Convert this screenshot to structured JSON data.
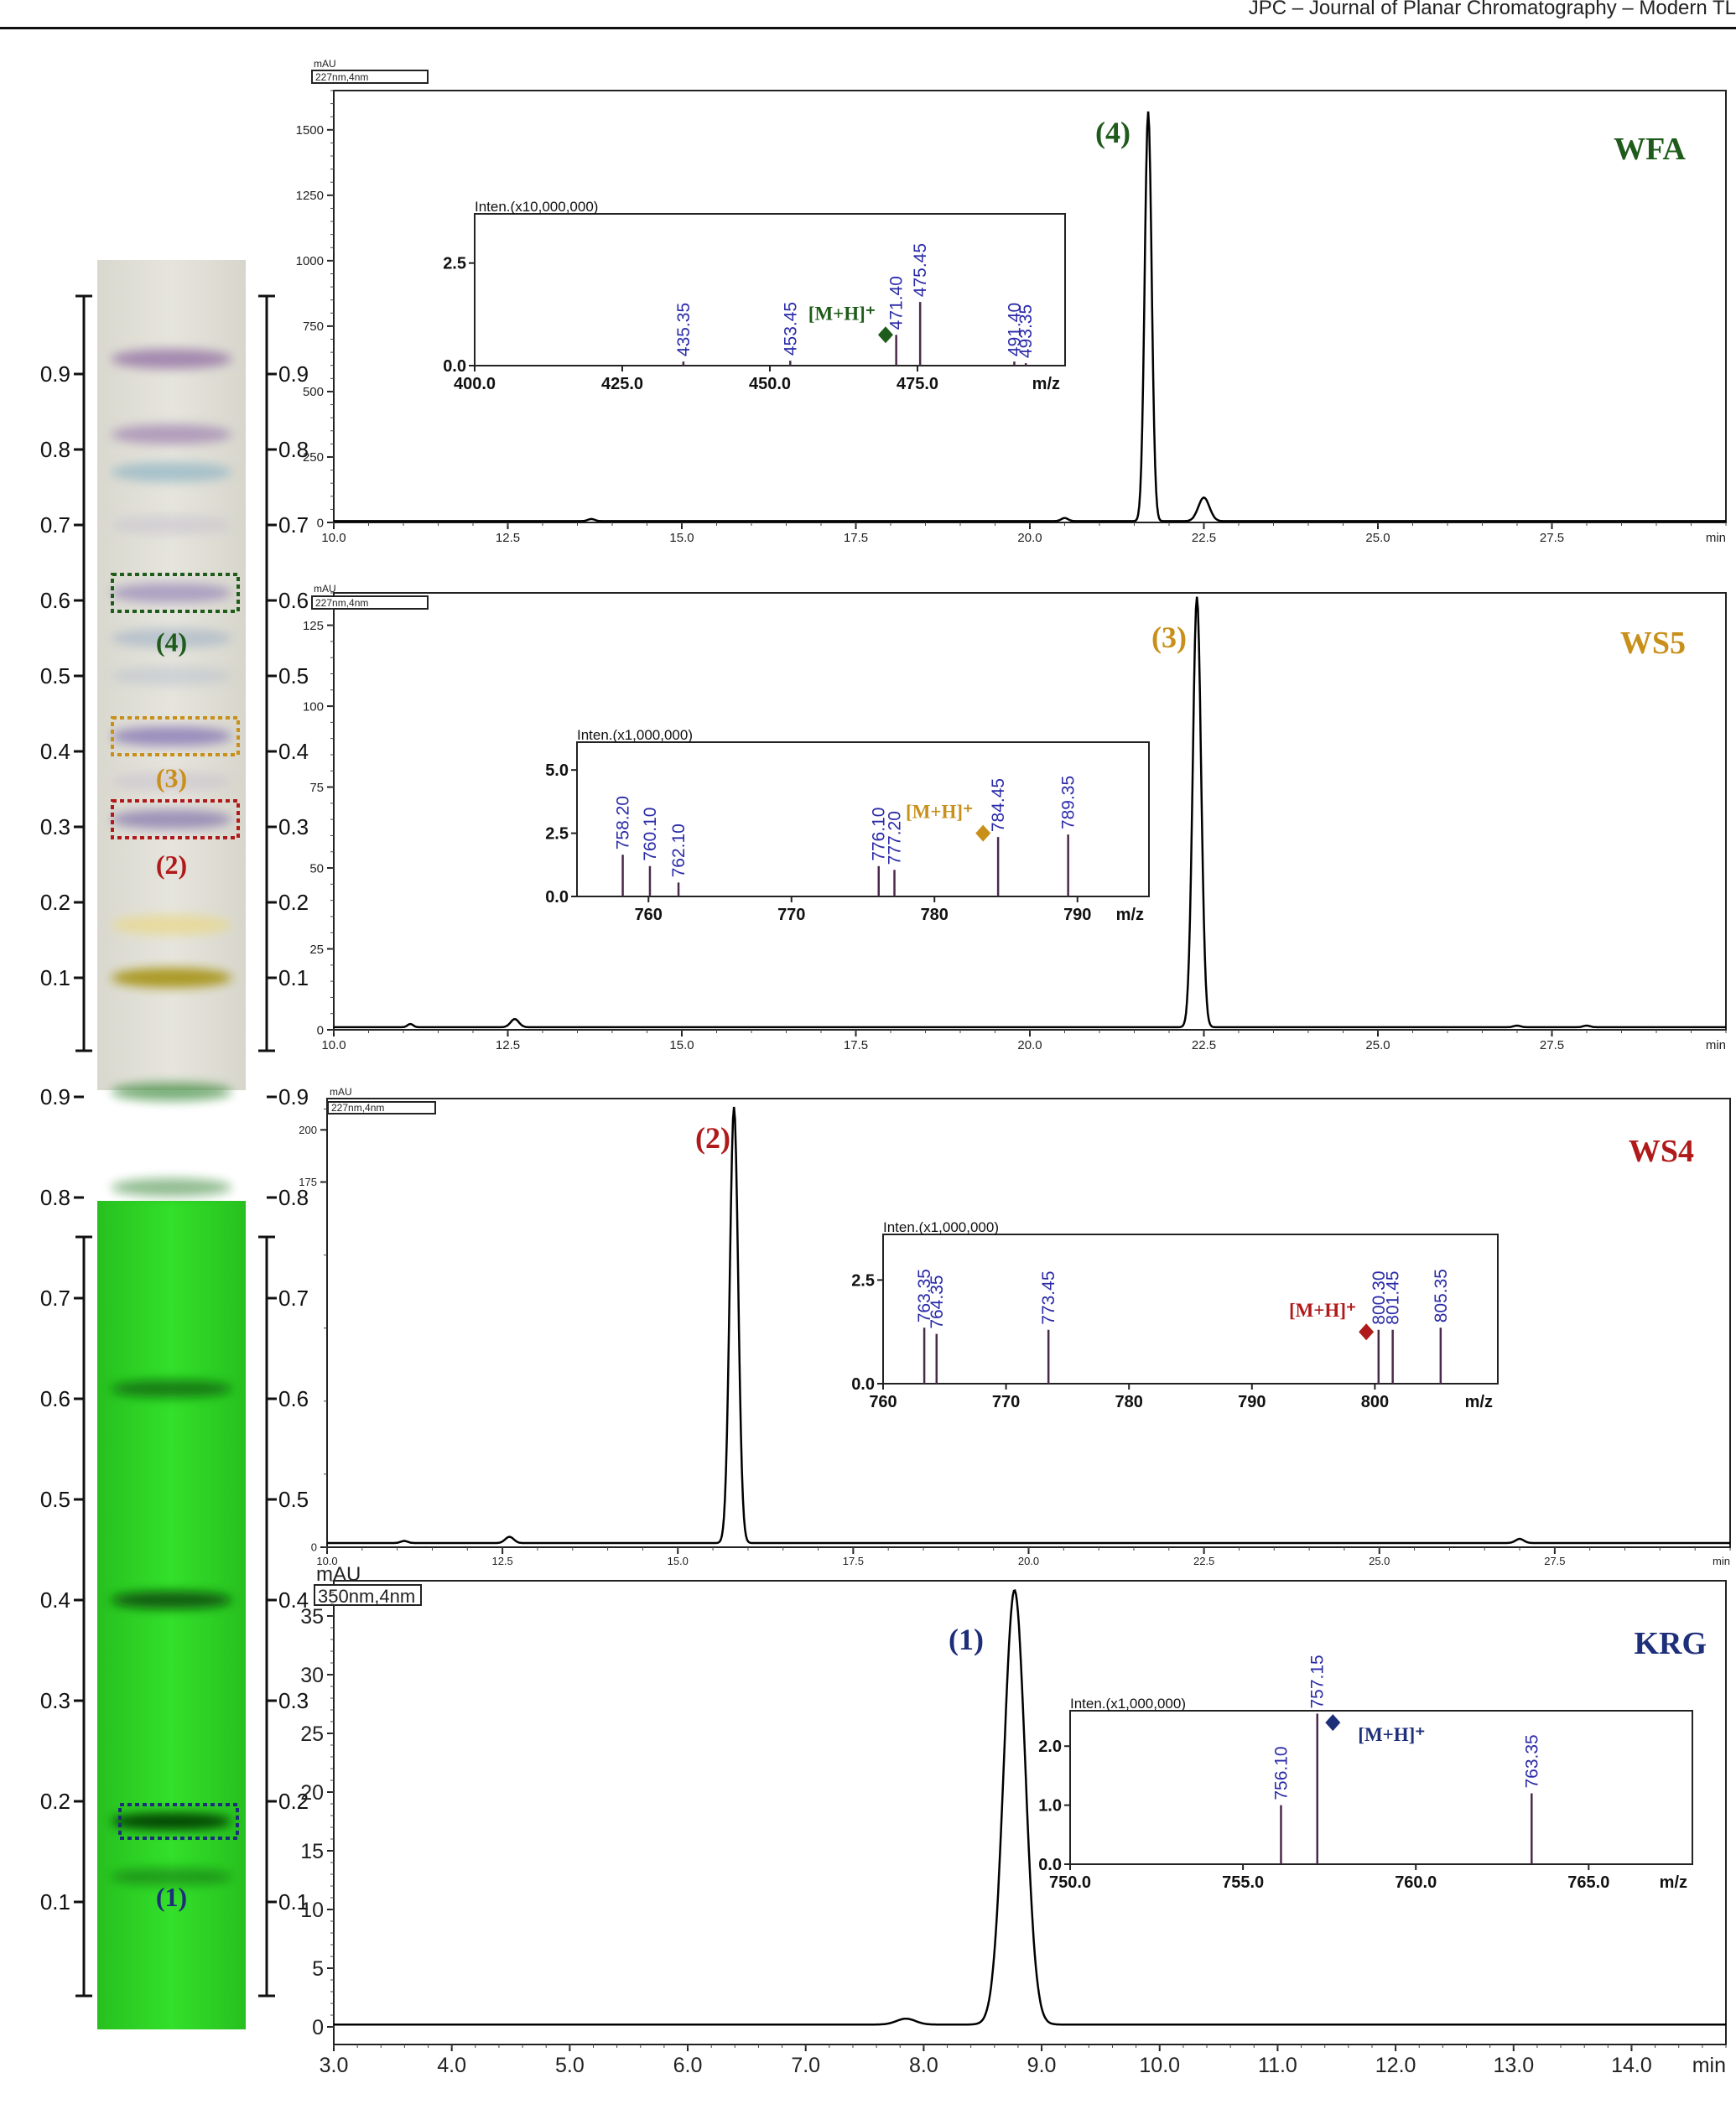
{
  "page": {
    "header": "JPC – Journal of Planar Chromatography – Modern TL"
  },
  "colors": {
    "WFA": "#1f5b1a",
    "WS5": "#c8901a",
    "WS4": "#b01a1a",
    "KRG": "#1e2f7a",
    "msText": "#2a2aa8"
  },
  "chart_data": [
    {
      "type": "line",
      "id": "WFA",
      "name": "WFA",
      "peak_label": "(4)",
      "yunit": "mAU",
      "detector": "227nm,4nm",
      "xunit": "min",
      "xlim": [
        10.0,
        30.0
      ],
      "ylim": [
        0,
        1650
      ],
      "xticks": [
        10.0,
        12.5,
        15.0,
        17.5,
        20.0,
        22.5,
        25.0,
        27.5
      ],
      "xtick_labels": [
        "10.0",
        "12.5",
        "15.0",
        "17.5",
        "20.0",
        "22.5",
        "25.0",
        "27.5"
      ],
      "yticks": [
        0,
        250,
        500,
        750,
        1000,
        1250,
        1500
      ],
      "ytick_labels": [
        "0",
        "250",
        "500",
        "750",
        "1000",
        "1250",
        "1500"
      ],
      "baseline": 5,
      "peaks": [
        [
          21.7,
          1565,
          0.05
        ],
        [
          22.5,
          90,
          0.08
        ],
        [
          13.7,
          8,
          0.05
        ],
        [
          20.5,
          12,
          0.05
        ]
      ],
      "peak_label_at": [
        21.7,
        1565
      ],
      "ms": {
        "intensity_label": "Inten.(x10,000,000)",
        "xlim": [
          400,
          500
        ],
        "ymax": 3.7,
        "yticks": [
          0.0,
          2.5
        ],
        "ytick_labels": [
          "0.0",
          "2.5"
        ],
        "xticks": [
          400,
          425,
          450,
          475
        ],
        "xtick_labels": [
          "400.0",
          "425.0",
          "450.0",
          "475.0"
        ],
        "xunit": "m/z",
        "peaks": [
          [
            435.35,
            0.1
          ],
          [
            453.45,
            0.12
          ],
          [
            471.4,
            0.75
          ],
          [
            475.45,
            1.55
          ],
          [
            491.4,
            0.1
          ],
          [
            493.35,
            0.06
          ]
        ],
        "peak_labels": [
          "435.35",
          "453.45",
          "471.40",
          "475.45",
          "491.40",
          "493.35"
        ],
        "mh_label": "[M+H]⁺",
        "mh_mz": 469.6,
        "mh_y": 0.75
      }
    },
    {
      "type": "line",
      "id": "WS5",
      "name": "WS5",
      "peak_label": "(3)",
      "yunit": "mAU",
      "detector": "227nm,4nm",
      "xunit": "min",
      "xlim": [
        10.0,
        30.0
      ],
      "ylim": [
        0,
        135
      ],
      "xticks": [
        10.0,
        12.5,
        15.0,
        17.5,
        20.0,
        22.5,
        25.0,
        27.5
      ],
      "xtick_labels": [
        "10.0",
        "12.5",
        "15.0",
        "17.5",
        "20.0",
        "22.5",
        "25.0",
        "27.5"
      ],
      "yticks": [
        0,
        25,
        50,
        75,
        100,
        125
      ],
      "ytick_labels": [
        "0",
        "25",
        "50",
        "75",
        "100",
        "125"
      ],
      "baseline": 0.8,
      "peaks": [
        [
          22.4,
          133,
          0.06
        ],
        [
          11.1,
          1.0,
          0.04
        ],
        [
          12.6,
          2.5,
          0.06
        ],
        [
          27.0,
          0.5,
          0.05
        ],
        [
          28.0,
          0.5,
          0.05
        ]
      ],
      "peak_label_at": [
        22.4,
        133
      ],
      "ms": {
        "intensity_label": "Inten.(x1,000,000)",
        "xlim": [
          755,
          795
        ],
        "ymax": 6.1,
        "yticks": [
          0.0,
          2.5,
          5.0
        ],
        "ytick_labels": [
          "0.0",
          "2.5",
          "5.0"
        ],
        "xticks": [
          760,
          770,
          780,
          790
        ],
        "xtick_labels": [
          "760",
          "770",
          "780",
          "790"
        ],
        "xunit": "m/z",
        "peaks": [
          [
            758.2,
            1.65
          ],
          [
            760.1,
            1.2
          ],
          [
            762.1,
            0.55
          ],
          [
            776.1,
            1.2
          ],
          [
            777.2,
            1.05
          ],
          [
            784.45,
            2.35
          ],
          [
            789.35,
            2.45
          ]
        ],
        "peak_labels": [
          "758.20",
          "760.10",
          "762.10",
          "776.10",
          "777.20",
          "784.45",
          "789.35"
        ],
        "mh_label": "[M+H]⁺",
        "mh_mz": 783.4,
        "mh_y": 2.5
      }
    },
    {
      "type": "line",
      "id": "WS4",
      "name": "WS4",
      "peak_label": "(2)",
      "yunit": "mAU",
      "detector": "227nm,4nm",
      "xunit": "min",
      "xlim": [
        10.0,
        30.0
      ],
      "ylim": [
        0,
        215
      ],
      "xticks": [
        10.0,
        12.5,
        15.0,
        17.5,
        20.0,
        22.5,
        25.0,
        27.5
      ],
      "xtick_labels": [
        "10.0",
        "12.5",
        "15.0",
        "17.5",
        "20.0",
        "22.5",
        "25.0",
        "27.5"
      ],
      "yticks": [
        0,
        175,
        200
      ],
      "ytick_labels": [
        "0",
        "175",
        "200"
      ],
      "baseline": 2,
      "peaks": [
        [
          15.8,
          209,
          0.06
        ],
        [
          12.6,
          3,
          0.06
        ],
        [
          11.1,
          1,
          0.05
        ],
        [
          27.0,
          2,
          0.06
        ]
      ],
      "peak_label_at": [
        15.8,
        209
      ],
      "ms": {
        "intensity_label": "Inten.(x1,000,000)",
        "xlim": [
          760,
          810
        ],
        "ymax": 3.6,
        "yticks": [
          0.0,
          2.5
        ],
        "ytick_labels": [
          "0.0",
          "2.5"
        ],
        "xticks": [
          760,
          770,
          780,
          790,
          800
        ],
        "xtick_labels": [
          "760",
          "770",
          "780",
          "790",
          "800"
        ],
        "xunit": "m/z",
        "peaks": [
          [
            763.35,
            1.35
          ],
          [
            764.35,
            1.2
          ],
          [
            773.45,
            1.3
          ],
          [
            800.3,
            1.3
          ],
          [
            801.45,
            1.3
          ],
          [
            805.35,
            1.35
          ]
        ],
        "peak_labels": [
          "763.35",
          "764.35",
          "773.45",
          "800.30",
          "801.45",
          "805.35"
        ],
        "mh_label": "[M+H]⁺",
        "mh_mz": 799.3,
        "mh_y": 1.25
      }
    },
    {
      "type": "line",
      "id": "KRG",
      "name": "KRG",
      "peak_label": "(1)",
      "yunit": "mAU",
      "detector": "350nm,4nm",
      "xunit": "min",
      "xlim": [
        3.0,
        14.8
      ],
      "ylim": [
        -1.5,
        38
      ],
      "xticks": [
        3.0,
        4.0,
        5.0,
        6.0,
        7.0,
        8.0,
        9.0,
        10.0,
        11.0,
        12.0,
        13.0,
        14.0
      ],
      "xtick_labels": [
        "3.0",
        "4.0",
        "5.0",
        "6.0",
        "7.0",
        "8.0",
        "9.0",
        "10.0",
        "11.0",
        "12.0",
        "13.0",
        "14.0"
      ],
      "yticks": [
        0,
        5,
        10,
        15,
        20,
        25,
        30,
        35
      ],
      "ytick_labels": [
        "0",
        "5",
        "10",
        "15",
        "20",
        "25",
        "30",
        "35"
      ],
      "baseline": 0.2,
      "peaks": [
        [
          8.77,
          37,
          0.09
        ],
        [
          7.85,
          0.5,
          0.08
        ]
      ],
      "peak_label_at": [
        8.77,
        37
      ],
      "ms": {
        "intensity_label": "Inten.(x1,000,000)",
        "xlim": [
          750,
          768
        ],
        "ymax": 2.6,
        "yticks": [
          0.0,
          1.0,
          2.0
        ],
        "ytick_labels": [
          "0.0",
          "1.0",
          "2.0"
        ],
        "xticks": [
          750,
          755,
          760,
          765
        ],
        "xtick_labels": [
          "750.0",
          "755.0",
          "760.0",
          "765.0"
        ],
        "xunit": "m/z",
        "peaks": [
          [
            756.1,
            1.0
          ],
          [
            757.15,
            2.55
          ],
          [
            763.35,
            1.2
          ]
        ],
        "peak_labels": [
          "756.10",
          "757.15",
          "763.35"
        ],
        "mh_label": "[M+H]⁺",
        "mh_mz": 757.6,
        "mh_y": 2.4
      }
    }
  ],
  "tlc": {
    "rf_ticks": [
      0.1,
      0.2,
      0.3,
      0.4,
      0.5,
      0.6,
      0.7,
      0.8,
      0.9
    ],
    "rf_labels": [
      "0.1",
      "0.2",
      "0.3",
      "0.4",
      "0.5",
      "0.6",
      "0.7",
      "0.8",
      "0.9"
    ],
    "top_plate": {
      "bands": [
        {
          "rf": 0.92,
          "color": "#9a7aa8",
          "opacity": 0.85
        },
        {
          "rf": 0.82,
          "color": "#a58cb4",
          "opacity": 0.8
        },
        {
          "rf": 0.77,
          "color": "#8fb4c4",
          "opacity": 0.7
        },
        {
          "rf": 0.7,
          "color": "#c7c2cf",
          "opacity": 0.55
        },
        {
          "rf": 0.61,
          "color": "#9b8cba",
          "opacity": 0.75
        },
        {
          "rf": 0.55,
          "color": "#9fb0c4",
          "opacity": 0.6
        },
        {
          "rf": 0.5,
          "color": "#b7c0cc",
          "opacity": 0.5
        },
        {
          "rf": 0.42,
          "color": "#8e80b8",
          "opacity": 0.85
        },
        {
          "rf": 0.36,
          "color": "#c6bccc",
          "opacity": 0.5
        },
        {
          "rf": 0.31,
          "color": "#8c80b0",
          "opacity": 0.8
        },
        {
          "rf": 0.17,
          "color": "#e8d88a",
          "opacity": 0.75
        },
        {
          "rf": 0.1,
          "color": "#a8961e",
          "opacity": 0.95
        }
      ],
      "boxes": [
        {
          "rf": 0.61,
          "color": "#1f5b1a",
          "label": "(4)",
          "label_rf": 0.545
        },
        {
          "rf": 0.42,
          "color": "#c8901a",
          "label": "(3)",
          "label_rf": 0.365
        },
        {
          "rf": 0.31,
          "color": "#b01a1a",
          "label": "(2)",
          "label_rf": 0.25
        }
      ]
    },
    "bottom_plate": {
      "bands": [
        {
          "rf": 0.905,
          "color": "#0d6e0d",
          "opacity": 0.55
        },
        {
          "rf": 0.81,
          "color": "#0d6e0d",
          "opacity": 0.45
        },
        {
          "rf": 0.61,
          "color": "#0a5a0a",
          "opacity": 0.7
        },
        {
          "rf": 0.4,
          "color": "#074807",
          "opacity": 0.85
        },
        {
          "rf": 0.18,
          "color": "#063a06",
          "opacity": 0.9
        },
        {
          "rf": 0.125,
          "color": "#0a5a0a",
          "opacity": 0.45
        }
      ],
      "boxes": [
        {
          "rf": 0.18,
          "color": "#1e2f7a",
          "label": "(1)",
          "label_rf": 0.105
        }
      ]
    }
  }
}
